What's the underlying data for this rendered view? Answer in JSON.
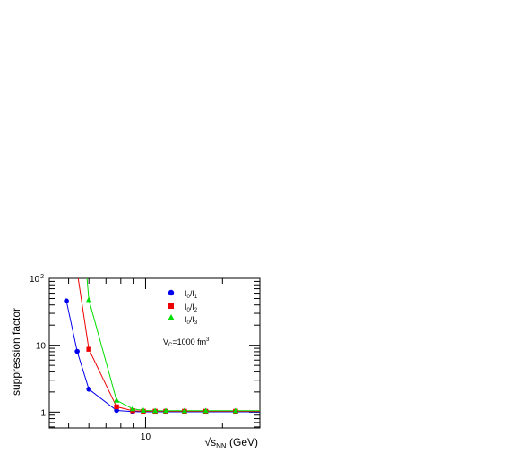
{
  "chart_data": {
    "type": "scatter",
    "xlabel": "√s",
    "xlabel_sub": "NN",
    "xlabel_unit": " (GeV)",
    "ylabel": "suppression factor",
    "xscale": "log",
    "yscale": "log",
    "xlim": [
      4.2,
      28
    ],
    "ylim": [
      0.58,
      100
    ],
    "x_ticks": [
      {
        "value": 10,
        "label": "10"
      }
    ],
    "y_ticks": [
      {
        "value": 1,
        "label": "1"
      },
      {
        "value": 10,
        "label": "10"
      },
      {
        "value": 100,
        "label": "10",
        "sup": "2"
      }
    ],
    "legend": {
      "placement": "top-right"
    },
    "annotation": {
      "base": "V",
      "sub": "C",
      "mid": "=1000 fm",
      "sup": "3"
    },
    "series": [
      {
        "name": "I0/I1",
        "label_base": "I",
        "label_sub1": "0",
        "label_mid": "/I",
        "label_sub2": "1",
        "marker": "circle",
        "color": "#0000ee",
        "x": [
          4.9,
          5.4,
          6.0,
          7.7,
          8.9,
          9.8,
          10.9,
          12.0,
          14.2,
          17.2,
          22.5
        ],
        "y": [
          46,
          8.1,
          2.2,
          1.06,
          1.02,
          1.01,
          1.01,
          1.01,
          1.01,
          1.01,
          1.01
        ],
        "line_x": [
          4.9,
          5.4,
          6.0,
          7.7,
          8.9,
          9.8,
          10.9,
          12.0,
          14.2,
          17.2,
          22.5,
          28
        ],
        "line_y": [
          46,
          8.1,
          2.2,
          1.06,
          1.02,
          1.01,
          1.01,
          1.01,
          1.01,
          1.01,
          1.01,
          1.01
        ]
      },
      {
        "name": "I0/I2",
        "label_base": "I",
        "label_sub1": "0",
        "label_mid": "/I",
        "label_sub2": "2",
        "marker": "square",
        "color": "#ee0000",
        "x": [
          6.0,
          7.7,
          8.9,
          9.8,
          10.9,
          12.0,
          14.2,
          17.2,
          22.5
        ],
        "y": [
          8.7,
          1.2,
          1.05,
          1.03,
          1.03,
          1.03,
          1.03,
          1.03,
          1.03
        ],
        "line_x": [
          5.45,
          6.0,
          7.7,
          8.9,
          9.8,
          10.9,
          12.0,
          14.2,
          17.2,
          22.5,
          28
        ],
        "line_y": [
          100,
          8.7,
          1.2,
          1.05,
          1.03,
          1.03,
          1.03,
          1.03,
          1.03,
          1.03,
          1.03
        ]
      },
      {
        "name": "I0/I3",
        "label_base": "I",
        "label_sub1": "0",
        "label_mid": "/I",
        "label_sub2": "3",
        "marker": "triangle",
        "color": "#00dd00",
        "x": [
          6.0,
          7.7,
          8.9,
          9.8,
          10.9,
          12.0,
          14.2,
          17.2,
          22.5
        ],
        "y": [
          48,
          1.5,
          1.12,
          1.06,
          1.05,
          1.05,
          1.05,
          1.05,
          1.05
        ],
        "line_x": [
          5.9,
          6.0,
          7.7,
          8.9,
          9.8,
          10.9,
          12.0,
          14.2,
          17.2,
          22.5,
          28
        ],
        "line_y": [
          100,
          48,
          1.5,
          1.12,
          1.06,
          1.05,
          1.05,
          1.05,
          1.05,
          1.05,
          1.05
        ]
      }
    ]
  }
}
